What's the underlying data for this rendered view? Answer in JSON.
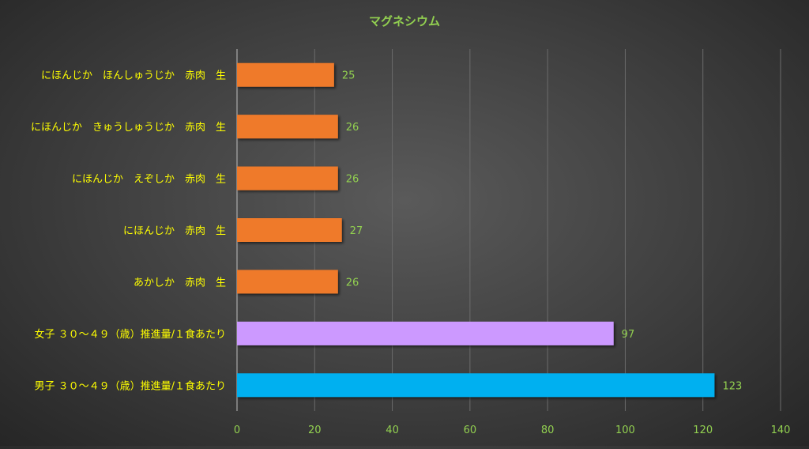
{
  "chart_data": {
    "type": "bar",
    "orientation": "horizontal",
    "title": "マグネシウム",
    "categories": [
      "にほんじか　ほんしゅうじか　赤肉　生",
      "にほんじか　きゅうしゅうじか　赤肉　生",
      "にほんじか　えぞしか　赤肉　生",
      "にほんじか　赤肉　生",
      "あかしか　赤肉　生",
      "女子 ３０～４９（歳）推進量/１食あたり",
      "男子 ３０～４９（歳）推進量/１食あたり"
    ],
    "values": [
      25,
      26,
      26,
      27,
      26,
      97,
      123
    ],
    "bar_colors": [
      "#ef7a2a",
      "#ef7a2a",
      "#ef7a2a",
      "#ef7a2a",
      "#ef7a2a",
      "#cc99ff",
      "#00b0f0"
    ],
    "xlim": [
      0,
      140
    ],
    "xticks": [
      0,
      20,
      40,
      60,
      80,
      100,
      120,
      140
    ],
    "xlabel": "",
    "ylabel": "",
    "grid": true,
    "legend": "none",
    "colors": {
      "title": "#92d050",
      "category_label": "#ffff00",
      "tick_label": "#92d050",
      "data_label": "#92d050",
      "grid": "#6b6b6b",
      "axis": "#bfbfbf"
    }
  }
}
